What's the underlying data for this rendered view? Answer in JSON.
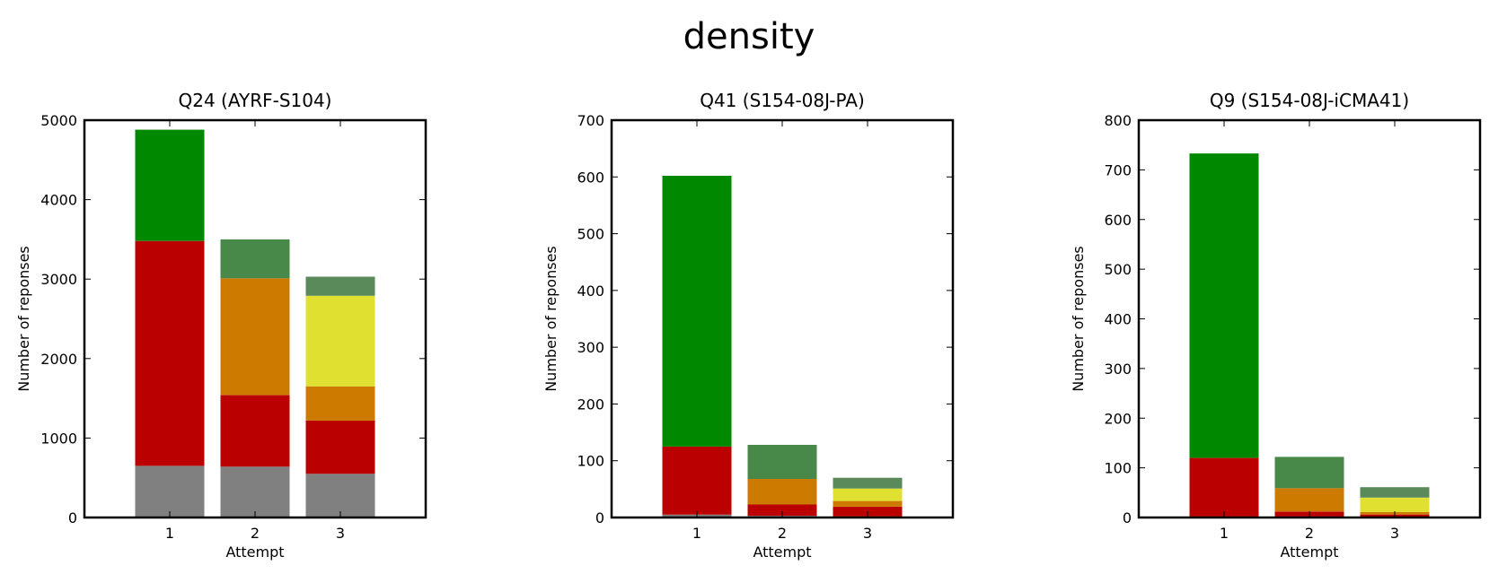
{
  "figure": {
    "title": "density"
  },
  "colors": {
    "gray": "#808080",
    "red": "#bb0000",
    "orange": "#cc7a00",
    "yellow": "#e0e030",
    "green": "#008800",
    "green2": "#488848",
    "green3": "#5a8a5a"
  },
  "chart_data": [
    {
      "type": "bar",
      "stacked": true,
      "title": "Q24 (AYRF-S104)",
      "xlabel": "Attempt",
      "ylabel": "Number of reponses",
      "categories": [
        "1",
        "2",
        "3"
      ],
      "ylim": [
        0,
        5000
      ],
      "yticks": [
        0,
        1000,
        2000,
        3000,
        4000,
        5000
      ],
      "bars": [
        {
          "category": "1",
          "segments": [
            {
              "value": 650,
              "color": "#808080"
            },
            {
              "value": 2830,
              "color": "#bb0000"
            },
            {
              "value": 1400,
              "color": "#008800"
            }
          ]
        },
        {
          "category": "2",
          "segments": [
            {
              "value": 640,
              "color": "#808080"
            },
            {
              "value": 900,
              "color": "#bb0000"
            },
            {
              "value": 1470,
              "color": "#cc7a00"
            },
            {
              "value": 490,
              "color": "#488848"
            }
          ]
        },
        {
          "category": "3",
          "segments": [
            {
              "value": 550,
              "color": "#808080"
            },
            {
              "value": 670,
              "color": "#bb0000"
            },
            {
              "value": 430,
              "color": "#cc7a00"
            },
            {
              "value": 1140,
              "color": "#e0e030"
            },
            {
              "value": 240,
              "color": "#5a8a5a"
            }
          ]
        }
      ]
    },
    {
      "type": "bar",
      "stacked": true,
      "title": "Q41 (S154-08J-PA)",
      "xlabel": "Attempt",
      "ylabel": "Number of reponses",
      "categories": [
        "1",
        "2",
        "3"
      ],
      "ylim": [
        0,
        700
      ],
      "yticks": [
        0,
        100,
        200,
        300,
        400,
        500,
        600,
        700
      ],
      "bars": [
        {
          "category": "1",
          "segments": [
            {
              "value": 5,
              "color": "#808080"
            },
            {
              "value": 120,
              "color": "#bb0000"
            },
            {
              "value": 477,
              "color": "#008800"
            }
          ]
        },
        {
          "category": "2",
          "segments": [
            {
              "value": 3,
              "color": "#808080"
            },
            {
              "value": 20,
              "color": "#bb0000"
            },
            {
              "value": 45,
              "color": "#cc7a00"
            },
            {
              "value": 60,
              "color": "#488848"
            }
          ]
        },
        {
          "category": "3",
          "segments": [
            {
              "value": 2,
              "color": "#808080"
            },
            {
              "value": 17,
              "color": "#bb0000"
            },
            {
              "value": 10,
              "color": "#cc7a00"
            },
            {
              "value": 22,
              "color": "#e0e030"
            },
            {
              "value": 19,
              "color": "#5a8a5a"
            }
          ]
        }
      ]
    },
    {
      "type": "bar",
      "stacked": true,
      "title": "Q9 (S154-08J-iCMA41)",
      "xlabel": "Attempt",
      "ylabel": "Number of reponses",
      "categories": [
        "1",
        "2",
        "3"
      ],
      "ylim": [
        0,
        800
      ],
      "yticks": [
        0,
        100,
        200,
        300,
        400,
        500,
        600,
        700,
        800
      ],
      "bars": [
        {
          "category": "1",
          "segments": [
            {
              "value": 2,
              "color": "#808080"
            },
            {
              "value": 118,
              "color": "#bb0000"
            },
            {
              "value": 613,
              "color": "#008800"
            }
          ]
        },
        {
          "category": "2",
          "segments": [
            {
              "value": 2,
              "color": "#808080"
            },
            {
              "value": 10,
              "color": "#bb0000"
            },
            {
              "value": 47,
              "color": "#cc7a00"
            },
            {
              "value": 63,
              "color": "#488848"
            }
          ]
        },
        {
          "category": "3",
          "segments": [
            {
              "value": 1,
              "color": "#808080"
            },
            {
              "value": 5,
              "color": "#bb0000"
            },
            {
              "value": 5,
              "color": "#cc7a00"
            },
            {
              "value": 29,
              "color": "#e0e030"
            },
            {
              "value": 21,
              "color": "#5a8a5a"
            }
          ]
        }
      ]
    }
  ]
}
